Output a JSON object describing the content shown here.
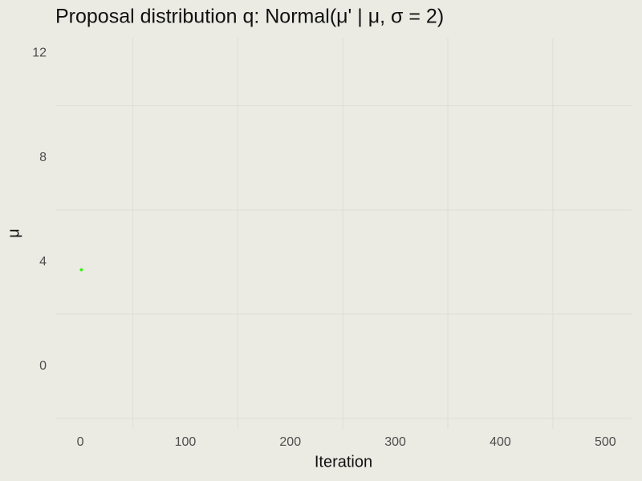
{
  "chart_data": {
    "type": "scatter",
    "title": "Proposal distribution q: Normal(μ' | μ, σ = 2)",
    "x_label": "Iteration",
    "y_label": "μ",
    "series": [
      {
        "name": "μ",
        "color": "#44ee22",
        "x": [
          1
        ],
        "values": [
          3.7
        ]
      }
    ],
    "xlim": [
      -23,
      525
    ],
    "ylim": [
      -2.4,
      12.6
    ],
    "xticks": [
      0,
      100,
      200,
      300,
      400,
      500
    ],
    "yticks": [
      0,
      4,
      8,
      12
    ],
    "x_minor_grid": [
      50,
      150,
      250,
      350,
      450
    ],
    "y_minor_grid": [
      -2,
      2,
      6,
      10
    ],
    "grid": true,
    "legend": false
  }
}
